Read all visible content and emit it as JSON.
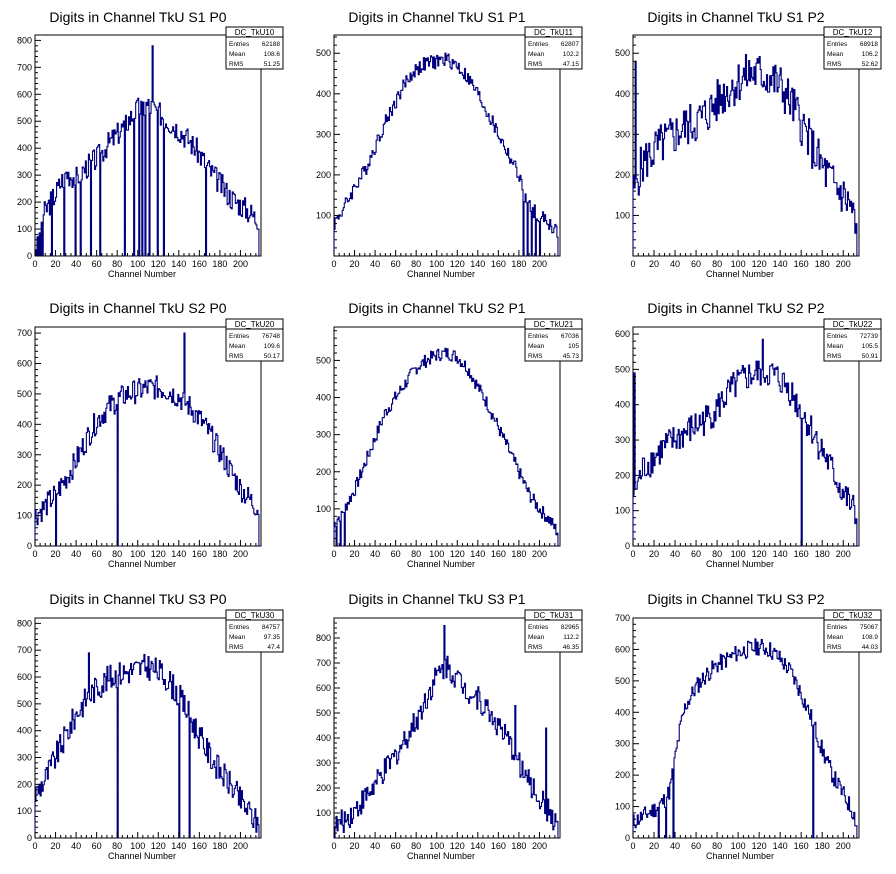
{
  "colors": {
    "histogram_line": "#00007f",
    "frame": "#000000",
    "background": "#ffffff"
  },
  "chart_data": [
    {
      "type": "bar",
      "title": "Digits in Channel TkU S1 P0",
      "xlabel": "Channel Number",
      "ylabel": "",
      "xlim": [
        0,
        220
      ],
      "ylim": [
        0,
        820
      ],
      "xticks": [
        0,
        20,
        40,
        60,
        80,
        100,
        120,
        140,
        160,
        180,
        200
      ],
      "yticks": [
        0,
        100,
        200,
        300,
        400,
        500,
        600,
        700,
        800
      ],
      "stats": {
        "name": "DC_TkU10",
        "rows": [
          [
            "Entries",
            "62188"
          ],
          [
            "Mean",
            "108.6"
          ],
          [
            "RMS",
            "51.25"
          ]
        ]
      },
      "spikes": [
        [
          114,
          780
        ]
      ],
      "dropouts": [
        1,
        3,
        5,
        7,
        16,
        28,
        39,
        44,
        54,
        63,
        87,
        96,
        101,
        104,
        107,
        111,
        119,
        125,
        166
      ],
      "envelope": [
        [
          0,
          40
        ],
        [
          3,
          90
        ],
        [
          8,
          150
        ],
        [
          12,
          180
        ],
        [
          20,
          230
        ],
        [
          25,
          270
        ],
        [
          30,
          310
        ],
        [
          40,
          290
        ],
        [
          50,
          330
        ],
        [
          60,
          360
        ],
        [
          70,
          410
        ],
        [
          80,
          450
        ],
        [
          90,
          500
        ],
        [
          100,
          545
        ],
        [
          110,
          560
        ],
        [
          120,
          535
        ],
        [
          130,
          500
        ],
        [
          140,
          470
        ],
        [
          150,
          430
        ],
        [
          160,
          380
        ],
        [
          170,
          320
        ],
        [
          180,
          270
        ],
        [
          190,
          220
        ],
        [
          200,
          190
        ],
        [
          210,
          160
        ],
        [
          215,
          140
        ]
      ],
      "noise": 45,
      "channels": 218
    },
    {
      "type": "bar",
      "title": "Digits in Channel TkU S1 P1",
      "xlabel": "Channel Number",
      "ylabel": "",
      "xlim": [
        0,
        220
      ],
      "ylim": [
        0,
        545
      ],
      "xticks": [
        0,
        20,
        40,
        60,
        80,
        100,
        120,
        140,
        160,
        180,
        200
      ],
      "yticks": [
        100,
        200,
        300,
        400,
        500
      ],
      "stats": {
        "name": "DC_TkU11",
        "rows": [
          [
            "Entries",
            "62807"
          ],
          [
            "Mean",
            "102.2"
          ],
          [
            "RMS",
            "47.15"
          ]
        ]
      },
      "spikes": [],
      "dropouts": [
        184,
        188,
        192,
        196,
        200
      ],
      "envelope": [
        [
          0,
          80
        ],
        [
          10,
          120
        ],
        [
          20,
          170
        ],
        [
          30,
          210
        ],
        [
          40,
          270
        ],
        [
          50,
          330
        ],
        [
          60,
          380
        ],
        [
          70,
          430
        ],
        [
          80,
          460
        ],
        [
          90,
          475
        ],
        [
          100,
          480
        ],
        [
          110,
          485
        ],
        [
          120,
          470
        ],
        [
          130,
          440
        ],
        [
          140,
          400
        ],
        [
          150,
          350
        ],
        [
          160,
          300
        ],
        [
          170,
          250
        ],
        [
          180,
          200
        ],
        [
          185,
          150
        ],
        [
          190,
          120
        ],
        [
          200,
          100
        ],
        [
          210,
          80
        ],
        [
          217,
          60
        ]
      ],
      "noise": 18,
      "channels": 218
    },
    {
      "type": "bar",
      "title": "Digits in Channel TkU S1 P2",
      "xlabel": "Channel Number",
      "ylabel": "",
      "xlim": [
        0,
        215
      ],
      "ylim": [
        0,
        545
      ],
      "xticks": [
        0,
        20,
        40,
        60,
        80,
        100,
        120,
        140,
        160,
        180,
        200
      ],
      "yticks": [
        100,
        200,
        300,
        400,
        500
      ],
      "stats": {
        "name": "DC_TkU12",
        "rows": [
          [
            "Entries",
            "68918"
          ],
          [
            "Mean",
            "106.2"
          ],
          [
            "RMS",
            "52.62"
          ]
        ]
      },
      "spikes": [
        [
          2,
          480
        ]
      ],
      "dropouts": [],
      "envelope": [
        [
          0,
          150
        ],
        [
          5,
          200
        ],
        [
          10,
          230
        ],
        [
          20,
          260
        ],
        [
          30,
          280
        ],
        [
          40,
          300
        ],
        [
          50,
          320
        ],
        [
          60,
          330
        ],
        [
          70,
          350
        ],
        [
          80,
          380
        ],
        [
          90,
          410
        ],
        [
          100,
          430
        ],
        [
          110,
          450
        ],
        [
          120,
          450
        ],
        [
          130,
          440
        ],
        [
          140,
          420
        ],
        [
          150,
          380
        ],
        [
          160,
          330
        ],
        [
          170,
          270
        ],
        [
          180,
          220
        ],
        [
          190,
          180
        ],
        [
          200,
          150
        ],
        [
          208,
          120
        ],
        [
          212,
          60
        ]
      ],
      "noise": 55,
      "channels": 213
    },
    {
      "type": "bar",
      "title": "Digits in Channel TkU S2 P0",
      "xlabel": "Channel Number",
      "ylabel": "",
      "xlim": [
        0,
        220
      ],
      "ylim": [
        0,
        720
      ],
      "xticks": [
        0,
        20,
        40,
        60,
        80,
        100,
        120,
        140,
        160,
        180,
        200
      ],
      "yticks": [
        0,
        100,
        200,
        300,
        400,
        500,
        600,
        700
      ],
      "stats": {
        "name": "DC_TkU20",
        "rows": [
          [
            "Entries",
            "76748"
          ],
          [
            "Mean",
            "109.6"
          ],
          [
            "RMS",
            "50.17"
          ]
        ]
      },
      "spikes": [
        [
          145,
          700
        ]
      ],
      "dropouts": [
        20,
        80
      ],
      "envelope": [
        [
          0,
          100
        ],
        [
          10,
          130
        ],
        [
          20,
          170
        ],
        [
          30,
          220
        ],
        [
          40,
          280
        ],
        [
          50,
          350
        ],
        [
          60,
          410
        ],
        [
          70,
          450
        ],
        [
          80,
          480
        ],
        [
          90,
          500
        ],
        [
          100,
          510
        ],
        [
          110,
          520
        ],
        [
          120,
          520
        ],
        [
          130,
          510
        ],
        [
          140,
          490
        ],
        [
          150,
          460
        ],
        [
          160,
          420
        ],
        [
          170,
          370
        ],
        [
          180,
          310
        ],
        [
          190,
          250
        ],
        [
          200,
          190
        ],
        [
          210,
          150
        ],
        [
          218,
          120
        ]
      ],
      "noise": 40,
      "channels": 218
    },
    {
      "type": "bar",
      "title": "Digits in Channel TkU S2 P1",
      "xlabel": "Channel Number",
      "ylabel": "",
      "xlim": [
        0,
        220
      ],
      "ylim": [
        0,
        590
      ],
      "xticks": [
        0,
        20,
        40,
        60,
        80,
        100,
        120,
        140,
        160,
        180,
        200
      ],
      "yticks": [
        100,
        200,
        300,
        400,
        500
      ],
      "stats": {
        "name": "DC_TkU21",
        "rows": [
          [
            "Entries",
            "67036"
          ],
          [
            "Mean",
            "105"
          ],
          [
            "RMS",
            "45.73"
          ]
        ]
      },
      "spikes": [],
      "dropouts": [
        2,
        6,
        10
      ],
      "envelope": [
        [
          0,
          60
        ],
        [
          10,
          100
        ],
        [
          20,
          150
        ],
        [
          30,
          220
        ],
        [
          40,
          290
        ],
        [
          50,
          360
        ],
        [
          60,
          400
        ],
        [
          70,
          440
        ],
        [
          80,
          480
        ],
        [
          90,
          500
        ],
        [
          100,
          515
        ],
        [
          110,
          520
        ],
        [
          120,
          510
        ],
        [
          130,
          480
        ],
        [
          140,
          430
        ],
        [
          150,
          380
        ],
        [
          160,
          320
        ],
        [
          170,
          260
        ],
        [
          180,
          200
        ],
        [
          190,
          140
        ],
        [
          200,
          100
        ],
        [
          210,
          70
        ],
        [
          217,
          40
        ]
      ],
      "noise": 18,
      "channels": 218
    },
    {
      "type": "bar",
      "title": "Digits in Channel TkU S2 P2",
      "xlabel": "Channel Number",
      "ylabel": "",
      "xlim": [
        0,
        215
      ],
      "ylim": [
        0,
        620
      ],
      "xticks": [
        0,
        20,
        40,
        60,
        80,
        100,
        120,
        140,
        160,
        180,
        200
      ],
      "yticks": [
        0,
        100,
        200,
        300,
        400,
        500,
        600
      ],
      "stats": {
        "name": "DC_TkU22",
        "rows": [
          [
            "Entries",
            "72739"
          ],
          [
            "Mean",
            "105.5"
          ],
          [
            "RMS",
            "50.91"
          ]
        ]
      },
      "spikes": [
        [
          1,
          490
        ],
        [
          123,
          585
        ]
      ],
      "dropouts": [
        160
      ],
      "envelope": [
        [
          0,
          150
        ],
        [
          5,
          180
        ],
        [
          10,
          220
        ],
        [
          20,
          250
        ],
        [
          30,
          280
        ],
        [
          40,
          300
        ],
        [
          50,
          320
        ],
        [
          60,
          340
        ],
        [
          70,
          360
        ],
        [
          80,
          390
        ],
        [
          90,
          430
        ],
        [
          100,
          460
        ],
        [
          110,
          480
        ],
        [
          120,
          490
        ],
        [
          130,
          490
        ],
        [
          140,
          470
        ],
        [
          150,
          440
        ],
        [
          160,
          380
        ],
        [
          170,
          330
        ],
        [
          180,
          270
        ],
        [
          190,
          210
        ],
        [
          200,
          150
        ],
        [
          210,
          100
        ],
        [
          213,
          70
        ]
      ],
      "noise": 45,
      "channels": 213
    },
    {
      "type": "bar",
      "title": "Digits in Channel TkU S3 P0",
      "xlabel": "Channel Number",
      "ylabel": "",
      "xlim": [
        0,
        220
      ],
      "ylim": [
        0,
        820
      ],
      "xticks": [
        0,
        20,
        40,
        60,
        80,
        100,
        120,
        140,
        160,
        180,
        200
      ],
      "yticks": [
        0,
        100,
        200,
        300,
        400,
        500,
        600,
        700,
        800
      ],
      "stats": {
        "name": "DC_TkU30",
        "rows": [
          [
            "Entries",
            "84757"
          ],
          [
            "Mean",
            "97.35"
          ],
          [
            "RMS",
            "47.4"
          ]
        ]
      },
      "spikes": [
        [
          52,
          690
        ]
      ],
      "dropouts": [
        80,
        140,
        150
      ],
      "envelope": [
        [
          0,
          160
        ],
        [
          10,
          220
        ],
        [
          20,
          300
        ],
        [
          30,
          380
        ],
        [
          40,
          460
        ],
        [
          50,
          520
        ],
        [
          60,
          560
        ],
        [
          70,
          590
        ],
        [
          80,
          610
        ],
        [
          90,
          620
        ],
        [
          100,
          630
        ],
        [
          110,
          640
        ],
        [
          120,
          620
        ],
        [
          130,
          590
        ],
        [
          140,
          530
        ],
        [
          150,
          460
        ],
        [
          160,
          380
        ],
        [
          170,
          310
        ],
        [
          180,
          250
        ],
        [
          190,
          200
        ],
        [
          200,
          140
        ],
        [
          210,
          90
        ],
        [
          217,
          50
        ]
      ],
      "noise": 50,
      "channels": 218
    },
    {
      "type": "bar",
      "title": "Digits in Channel TkU S3 P1",
      "xlabel": "Channel Number",
      "ylabel": "",
      "xlim": [
        0,
        220
      ],
      "ylim": [
        0,
        880
      ],
      "xticks": [
        0,
        20,
        40,
        60,
        80,
        100,
        120,
        140,
        160,
        180,
        200
      ],
      "yticks": [
        100,
        200,
        300,
        400,
        500,
        600,
        700,
        800
      ],
      "stats": {
        "name": "DC_TkU31",
        "rows": [
          [
            "Entries",
            "82965"
          ],
          [
            "Mean",
            "112.2"
          ],
          [
            "RMS",
            "46.35"
          ]
        ]
      },
      "spikes": [
        [
          107,
          850
        ],
        [
          176,
          530
        ],
        [
          206,
          440
        ]
      ],
      "dropouts": [],
      "envelope": [
        [
          0,
          40
        ],
        [
          10,
          70
        ],
        [
          20,
          110
        ],
        [
          30,
          160
        ],
        [
          40,
          210
        ],
        [
          50,
          270
        ],
        [
          60,
          330
        ],
        [
          70,
          400
        ],
        [
          80,
          470
        ],
        [
          90,
          560
        ],
        [
          100,
          650
        ],
        [
          110,
          690
        ],
        [
          120,
          640
        ],
        [
          130,
          590
        ],
        [
          140,
          560
        ],
        [
          150,
          510
        ],
        [
          160,
          450
        ],
        [
          170,
          380
        ],
        [
          180,
          300
        ],
        [
          190,
          220
        ],
        [
          200,
          160
        ],
        [
          210,
          100
        ],
        [
          217,
          60
        ]
      ],
      "noise": 50,
      "channels": 218
    },
    {
      "type": "bar",
      "title": "Digits in Channel TkU S3 P2",
      "xlabel": "Channel Number",
      "ylabel": "",
      "xlim": [
        0,
        215
      ],
      "ylim": [
        0,
        700
      ],
      "xticks": [
        0,
        20,
        40,
        60,
        80,
        100,
        120,
        140,
        160,
        180,
        200
      ],
      "yticks": [
        0,
        100,
        200,
        300,
        400,
        500,
        600,
        700
      ],
      "stats": {
        "name": "DC_TkU32",
        "rows": [
          [
            "Entries",
            "75067"
          ],
          [
            "Mean",
            "108.9"
          ],
          [
            "RMS",
            "44.03"
          ]
        ]
      },
      "spikes": [],
      "dropouts": [
        24,
        31,
        38,
        171
      ],
      "envelope": [
        [
          0,
          50
        ],
        [
          10,
          70
        ],
        [
          20,
          90
        ],
        [
          30,
          120
        ],
        [
          35,
          150
        ],
        [
          40,
          250
        ],
        [
          45,
          350
        ],
        [
          50,
          420
        ],
        [
          60,
          480
        ],
        [
          70,
          520
        ],
        [
          80,
          550
        ],
        [
          90,
          570
        ],
        [
          100,
          590
        ],
        [
          110,
          600
        ],
        [
          120,
          610
        ],
        [
          130,
          600
        ],
        [
          140,
          570
        ],
        [
          150,
          530
        ],
        [
          160,
          460
        ],
        [
          170,
          380
        ],
        [
          180,
          280
        ],
        [
          190,
          200
        ],
        [
          200,
          140
        ],
        [
          210,
          80
        ],
        [
          213,
          40
        ]
      ],
      "noise": 28,
      "channels": 213
    }
  ]
}
